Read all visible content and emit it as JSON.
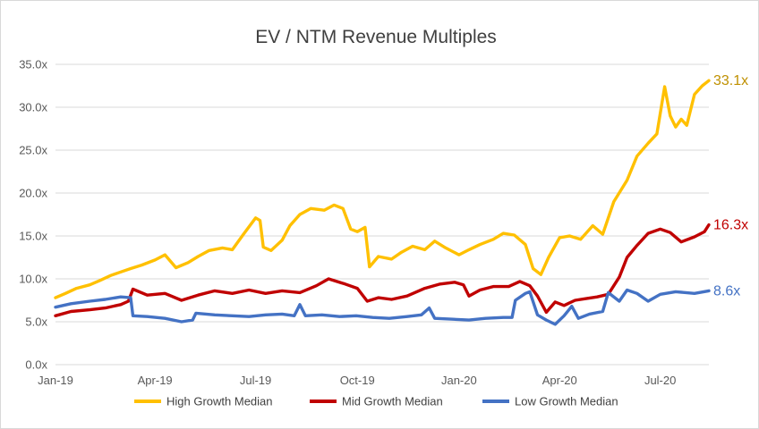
{
  "chart_data": {
    "type": "line",
    "title": "EV / NTM Revenue Multiples",
    "xlabel": "",
    "ylabel": "",
    "ylim": [
      0,
      35
    ],
    "y_ticks": [
      "0.0x",
      "5.0x",
      "10.0x",
      "15.0x",
      "20.0x",
      "25.0x",
      "30.0x",
      "35.0x"
    ],
    "x_ticks": [
      "Jan-19",
      "Apr-19",
      "Jul-19",
      "Oct-19",
      "Jan-20",
      "Apr-20",
      "Jul-20"
    ],
    "x_tick_dates": [
      "2019-01-01",
      "2019-04-01",
      "2019-07-01",
      "2019-10-01",
      "2020-01-01",
      "2020-04-01",
      "2020-07-01"
    ],
    "x_range": [
      "2019-01-01",
      "2020-08-14"
    ],
    "grid": true,
    "legend_position": "bottom",
    "series": [
      {
        "name": "High Growth Median",
        "color": "#FFC000",
        "end_label": "33.1x",
        "points": [
          [
            "2019-01-01",
            7.8
          ],
          [
            "2019-01-10",
            8.3
          ],
          [
            "2019-01-20",
            8.9
          ],
          [
            "2019-02-01",
            9.3
          ],
          [
            "2019-02-10",
            9.8
          ],
          [
            "2019-02-20",
            10.4
          ],
          [
            "2019-03-01",
            10.8
          ],
          [
            "2019-03-10",
            11.2
          ],
          [
            "2019-03-20",
            11.6
          ],
          [
            "2019-04-01",
            12.2
          ],
          [
            "2019-04-10",
            12.8
          ],
          [
            "2019-04-20",
            11.3
          ],
          [
            "2019-05-01",
            11.9
          ],
          [
            "2019-05-10",
            12.6
          ],
          [
            "2019-05-20",
            13.3
          ],
          [
            "2019-06-01",
            13.6
          ],
          [
            "2019-06-10",
            13.4
          ],
          [
            "2019-06-20",
            15.2
          ],
          [
            "2019-07-01",
            17.1
          ],
          [
            "2019-07-05",
            16.8
          ],
          [
            "2019-07-08",
            13.7
          ],
          [
            "2019-07-15",
            13.3
          ],
          [
            "2019-07-25",
            14.5
          ],
          [
            "2019-08-01",
            16.2
          ],
          [
            "2019-08-10",
            17.5
          ],
          [
            "2019-08-20",
            18.2
          ],
          [
            "2019-09-01",
            18.0
          ],
          [
            "2019-09-10",
            18.6
          ],
          [
            "2019-09-18",
            18.2
          ],
          [
            "2019-09-25",
            15.8
          ],
          [
            "2019-10-01",
            15.5
          ],
          [
            "2019-10-08",
            16.0
          ],
          [
            "2019-10-12",
            11.4
          ],
          [
            "2019-10-20",
            12.6
          ],
          [
            "2019-11-01",
            12.3
          ],
          [
            "2019-11-10",
            13.1
          ],
          [
            "2019-11-20",
            13.8
          ],
          [
            "2019-12-01",
            13.4
          ],
          [
            "2019-12-10",
            14.4
          ],
          [
            "2019-12-20",
            13.6
          ],
          [
            "2020-01-01",
            12.8
          ],
          [
            "2020-01-10",
            13.4
          ],
          [
            "2020-01-20",
            14.0
          ],
          [
            "2020-02-01",
            14.6
          ],
          [
            "2020-02-10",
            15.3
          ],
          [
            "2020-02-20",
            15.1
          ],
          [
            "2020-03-01",
            14.0
          ],
          [
            "2020-03-08",
            11.2
          ],
          [
            "2020-03-15",
            10.5
          ],
          [
            "2020-03-22",
            12.5
          ],
          [
            "2020-04-01",
            14.8
          ],
          [
            "2020-04-10",
            15.0
          ],
          [
            "2020-04-20",
            14.6
          ],
          [
            "2020-05-01",
            16.2
          ],
          [
            "2020-05-10",
            15.2
          ],
          [
            "2020-05-20",
            19.0
          ],
          [
            "2020-06-01",
            21.5
          ],
          [
            "2020-06-10",
            24.3
          ],
          [
            "2020-06-20",
            25.8
          ],
          [
            "2020-06-28",
            26.9
          ],
          [
            "2020-07-05",
            32.4
          ],
          [
            "2020-07-10",
            29.0
          ],
          [
            "2020-07-15",
            27.7
          ],
          [
            "2020-07-20",
            28.6
          ],
          [
            "2020-07-25",
            27.9
          ],
          [
            "2020-08-01",
            31.5
          ],
          [
            "2020-08-08",
            32.5
          ],
          [
            "2020-08-14",
            33.1
          ]
        ]
      },
      {
        "name": "Mid Growth Median",
        "color": "#C00000",
        "end_label": "16.3x",
        "points": [
          [
            "2019-01-01",
            5.7
          ],
          [
            "2019-01-15",
            6.2
          ],
          [
            "2019-02-01",
            6.4
          ],
          [
            "2019-02-15",
            6.6
          ],
          [
            "2019-03-01",
            7.0
          ],
          [
            "2019-03-08",
            7.4
          ],
          [
            "2019-03-12",
            8.8
          ],
          [
            "2019-03-25",
            8.1
          ],
          [
            "2019-04-10",
            8.3
          ],
          [
            "2019-04-25",
            7.5
          ],
          [
            "2019-05-10",
            8.1
          ],
          [
            "2019-05-25",
            8.6
          ],
          [
            "2019-06-10",
            8.3
          ],
          [
            "2019-06-25",
            8.7
          ],
          [
            "2019-07-10",
            8.3
          ],
          [
            "2019-07-25",
            8.6
          ],
          [
            "2019-08-10",
            8.4
          ],
          [
            "2019-08-25",
            9.2
          ],
          [
            "2019-09-05",
            10.0
          ],
          [
            "2019-09-20",
            9.4
          ],
          [
            "2019-10-01",
            8.9
          ],
          [
            "2019-10-10",
            7.4
          ],
          [
            "2019-10-20",
            7.8
          ],
          [
            "2019-11-01",
            7.6
          ],
          [
            "2019-11-15",
            8.0
          ],
          [
            "2019-12-01",
            8.9
          ],
          [
            "2019-12-15",
            9.4
          ],
          [
            "2019-12-28",
            9.6
          ],
          [
            "2020-01-05",
            9.3
          ],
          [
            "2020-01-10",
            8.0
          ],
          [
            "2020-01-20",
            8.7
          ],
          [
            "2020-02-01",
            9.1
          ],
          [
            "2020-02-15",
            9.1
          ],
          [
            "2020-02-25",
            9.7
          ],
          [
            "2020-03-05",
            9.2
          ],
          [
            "2020-03-12",
            8.0
          ],
          [
            "2020-03-20",
            6.1
          ],
          [
            "2020-03-28",
            7.3
          ],
          [
            "2020-04-05",
            6.9
          ],
          [
            "2020-04-15",
            7.5
          ],
          [
            "2020-04-25",
            7.7
          ],
          [
            "2020-05-05",
            7.9
          ],
          [
            "2020-05-15",
            8.2
          ],
          [
            "2020-05-25",
            10.2
          ],
          [
            "2020-06-01",
            12.5
          ],
          [
            "2020-06-10",
            13.9
          ],
          [
            "2020-06-20",
            15.3
          ],
          [
            "2020-07-01",
            15.8
          ],
          [
            "2020-07-10",
            15.4
          ],
          [
            "2020-07-20",
            14.3
          ],
          [
            "2020-08-01",
            14.9
          ],
          [
            "2020-08-10",
            15.5
          ],
          [
            "2020-08-14",
            16.3
          ]
        ]
      },
      {
        "name": "Low Growth Median",
        "color": "#4472C4",
        "end_label": "8.6x",
        "points": [
          [
            "2019-01-01",
            6.7
          ],
          [
            "2019-01-15",
            7.1
          ],
          [
            "2019-02-01",
            7.4
          ],
          [
            "2019-02-15",
            7.6
          ],
          [
            "2019-03-01",
            7.9
          ],
          [
            "2019-03-10",
            7.8
          ],
          [
            "2019-03-12",
            5.7
          ],
          [
            "2019-03-25",
            5.6
          ],
          [
            "2019-04-10",
            5.4
          ],
          [
            "2019-04-25",
            5.0
          ],
          [
            "2019-05-05",
            5.2
          ],
          [
            "2019-05-08",
            6.0
          ],
          [
            "2019-05-25",
            5.8
          ],
          [
            "2019-06-10",
            5.7
          ],
          [
            "2019-06-25",
            5.6
          ],
          [
            "2019-07-10",
            5.8
          ],
          [
            "2019-07-25",
            5.9
          ],
          [
            "2019-08-05",
            5.7
          ],
          [
            "2019-08-10",
            7.0
          ],
          [
            "2019-08-15",
            5.7
          ],
          [
            "2019-08-30",
            5.8
          ],
          [
            "2019-09-15",
            5.6
          ],
          [
            "2019-09-30",
            5.7
          ],
          [
            "2019-10-15",
            5.5
          ],
          [
            "2019-10-30",
            5.4
          ],
          [
            "2019-11-15",
            5.6
          ],
          [
            "2019-11-28",
            5.8
          ],
          [
            "2019-12-05",
            6.6
          ],
          [
            "2019-12-10",
            5.4
          ],
          [
            "2019-12-25",
            5.3
          ],
          [
            "2020-01-10",
            5.2
          ],
          [
            "2020-01-25",
            5.4
          ],
          [
            "2020-02-10",
            5.5
          ],
          [
            "2020-02-18",
            5.5
          ],
          [
            "2020-02-21",
            7.5
          ],
          [
            "2020-03-01",
            8.3
          ],
          [
            "2020-03-05",
            8.5
          ],
          [
            "2020-03-12",
            5.8
          ],
          [
            "2020-03-20",
            5.2
          ],
          [
            "2020-03-28",
            4.7
          ],
          [
            "2020-04-05",
            5.7
          ],
          [
            "2020-04-12",
            6.8
          ],
          [
            "2020-04-18",
            5.4
          ],
          [
            "2020-04-28",
            5.9
          ],
          [
            "2020-05-10",
            6.2
          ],
          [
            "2020-05-15",
            8.4
          ],
          [
            "2020-05-25",
            7.4
          ],
          [
            "2020-06-01",
            8.7
          ],
          [
            "2020-06-10",
            8.3
          ],
          [
            "2020-06-20",
            7.4
          ],
          [
            "2020-07-01",
            8.2
          ],
          [
            "2020-07-15",
            8.5
          ],
          [
            "2020-08-01",
            8.3
          ],
          [
            "2020-08-14",
            8.6
          ]
        ]
      }
    ]
  }
}
